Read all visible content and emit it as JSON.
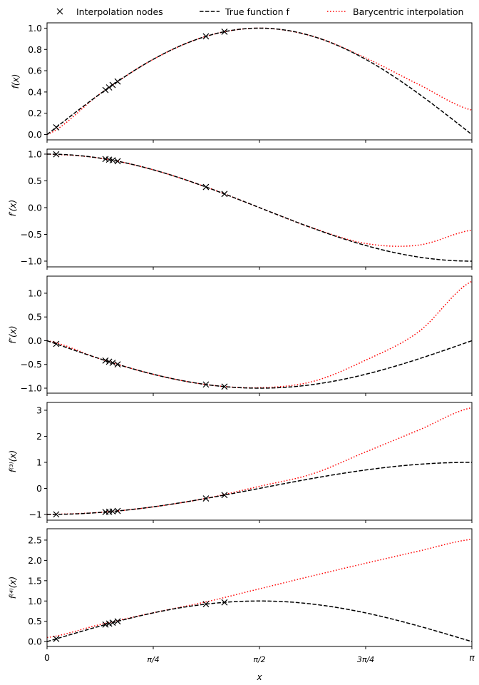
{
  "chart_data": {
    "type": "line",
    "legend": {
      "placement": "top",
      "entries": [
        {
          "label": "Interpolation nodes",
          "style": "x-marker",
          "color": "#000000"
        },
        {
          "label": "True function f",
          "style": "dashed",
          "color": "#000000"
        },
        {
          "label": "Barycentric interpolation",
          "style": "dotted",
          "color": "#ff0000"
        }
      ]
    },
    "xlabel": "x",
    "xlim": [
      0,
      3.14159
    ],
    "xticks": [
      {
        "value": 0,
        "label": "0"
      },
      {
        "value": 0.7854,
        "label": "π/4"
      },
      {
        "value": 1.5708,
        "label": "π/2"
      },
      {
        "value": 2.3562,
        "label": "3π/4"
      },
      {
        "value": 3.14159,
        "label": "π"
      }
    ],
    "node_x": [
      0.068,
      0.432,
      0.459,
      0.485,
      0.522,
      1.175,
      1.312
    ],
    "interp_sample_x": [
      0,
      0.3927,
      0.7854,
      1.1781,
      1.5708,
      1.9635,
      2.3562,
      2.7489,
      3.14159
    ],
    "panels": [
      {
        "ylabel": "f(x)",
        "derivative_order": 0,
        "ylim": [
          -0.05,
          1.05
        ],
        "yticks": [
          0.0,
          0.2,
          0.4,
          0.6,
          0.8,
          1.0
        ],
        "ytick_labels": [
          "0.0",
          "0.2",
          "0.4",
          "0.6",
          "0.8",
          "1.0"
        ],
        "interpolation": [
          0,
          0.383,
          0.707,
          0.924,
          1.0,
          0.924,
          0.72,
          0.47,
          0.23
        ]
      },
      {
        "ylabel": "f′(x)",
        "derivative_order": 1,
        "ylim": [
          -1.107,
          1.093
        ],
        "yticks": [
          -1.0,
          -0.5,
          0.0,
          0.5,
          1.0
        ],
        "ytick_labels": [
          "−1.0",
          "−0.5",
          "0.0",
          "0.5",
          "1.0"
        ],
        "interpolation": [
          1.0,
          0.924,
          0.707,
          0.383,
          0.0,
          -0.38,
          -0.67,
          -0.7,
          -0.42
        ]
      },
      {
        "ylabel": "f″(x)",
        "derivative_order": 2,
        "ylim": [
          -1.105,
          1.36
        ],
        "yticks": [
          -1.0,
          -0.5,
          0.0,
          0.5,
          1.0
        ],
        "ytick_labels": [
          "−1.0",
          "−0.5",
          "0.0",
          "0.5",
          "1.0"
        ],
        "interpolation": [
          0,
          -0.383,
          -0.707,
          -0.924,
          -0.99,
          -0.86,
          -0.41,
          0.19,
          1.25
        ]
      },
      {
        "ylabel": "f⁽³⁾(x)",
        "derivative_order": 3,
        "ylim": [
          -1.22,
          3.3
        ],
        "yticks": [
          -1,
          0,
          1,
          2,
          3
        ],
        "ytick_labels": [
          "−1",
          "0",
          "1",
          "2",
          "3"
        ],
        "interpolation": [
          -1.0,
          -0.92,
          -0.71,
          -0.38,
          0.08,
          0.56,
          1.4,
          2.24,
          3.1
        ]
      },
      {
        "ylabel": "f⁽⁴⁾(x)",
        "derivative_order": 4,
        "ylim": [
          -0.12,
          2.78
        ],
        "yticks": [
          0.0,
          0.5,
          1.0,
          1.5,
          2.0,
          2.5
        ],
        "ytick_labels": [
          "0.0",
          "0.5",
          "1.0",
          "1.5",
          "2.0",
          "2.5"
        ],
        "interpolation": [
          0.1,
          0.42,
          0.71,
          0.98,
          1.3,
          1.62,
          1.93,
          2.23,
          2.52
        ]
      }
    ]
  }
}
